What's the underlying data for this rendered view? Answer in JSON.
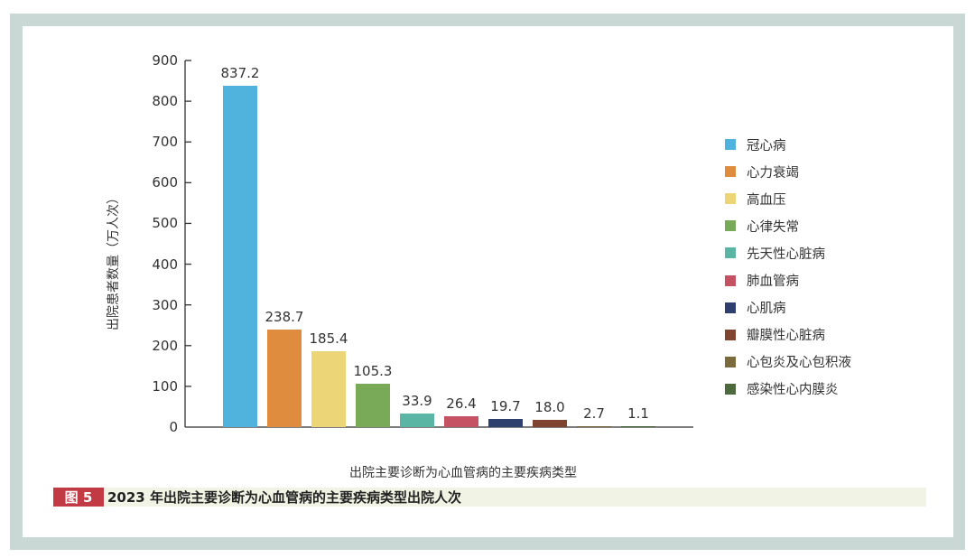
{
  "chart_data": {
    "type": "bar",
    "title": "2023 年出院主要诊断为心血管病的主要疾病类型出院人次",
    "xlabel": "出院主要诊断为心血管病的主要疾病类型",
    "ylabel": "出院患者数量（万人次）",
    "ylim": [
      0,
      900
    ],
    "yticks": [
      0,
      100,
      200,
      300,
      400,
      500,
      600,
      700,
      800,
      900
    ],
    "grid": false,
    "legend_position": "right",
    "categories": [
      "冠心病",
      "心力衰竭",
      "高血压",
      "心律失常",
      "先天性心脏病",
      "肺血管病",
      "心肌病",
      "瓣膜性心脏病",
      "心包炎及心包积液",
      "感染性心内膜炎"
    ],
    "values": [
      837.2,
      238.7,
      185.4,
      105.3,
      33.9,
      26.4,
      19.7,
      18.0,
      2.7,
      1.1
    ],
    "value_labels": [
      "837.2",
      "238.7",
      "185.4",
      "105.3",
      "33.9",
      "26.4",
      "19.7",
      "18.0",
      "2.7",
      "1.1"
    ],
    "colors": [
      "#4fb3de",
      "#e08c3e",
      "#ecd577",
      "#79aa58",
      "#5bb5a4",
      "#c55262",
      "#2f3f6e",
      "#7f4530",
      "#7a6a3c",
      "#4c6a3e"
    ]
  },
  "caption": {
    "tag": "图 5",
    "text": "2023 年出院主要诊断为心血管病的主要疾病类型出院人次",
    "tag_color": "#c23a44",
    "band_color": "#f1f4e4"
  },
  "frame_color": "#c9d8d5"
}
